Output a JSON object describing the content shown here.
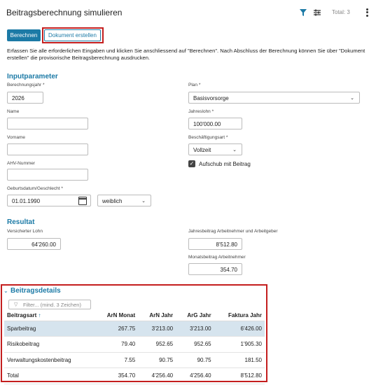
{
  "header": {
    "title": "Beitragsberechnung simulieren",
    "total": "Total: 3",
    "accent": "#1c7aa6",
    "icons": [
      "filter-icon",
      "tune-icon",
      "kebab-icon"
    ]
  },
  "actions": {
    "calculate": "Berechnen",
    "create_document": "Dokument erstellen"
  },
  "intro": "Erfassen Sie alle erforderlichen Eingaben und klicken Sie anschliessend auf \"Berechnen\". Nach Abschluss der Berechnung können Sie über \"Dokument erstellen\" die provisorische Beitragsberechnung ausdrucken.",
  "input": {
    "title": "Inputparameter",
    "year_label": "Berechnungsjahr *",
    "year": "2026",
    "name_label": "Name",
    "name": "",
    "firstname_label": "Vorname",
    "firstname": "",
    "ahv_label": "AHV-Nummer",
    "ahv": "",
    "birth_label": "Geburtsdatum/Geschlecht *",
    "birthdate": "01.01.1990",
    "gender": "weiblich",
    "plan_label": "Plan *",
    "plan": "Basisvorsorge",
    "salary_label": "Jahreslohn *",
    "salary": "100'000.00",
    "employment_label": "Beschäftigungsart *",
    "employment": "Vollzeit",
    "deferral_label": "Aufschub mit Beitrag",
    "deferral_checked": true
  },
  "result": {
    "title": "Resultat",
    "insured_label": "Versicherter Lohn",
    "insured": "64'260.00",
    "annual_label": "Jahresbeitrag Arbeitnehmer und Arbeitgeber",
    "annual": "8'512.80",
    "monthly_label": "Monatsbeitrag Arbeitnehmer",
    "monthly": "354.70"
  },
  "details": {
    "title": "Beitragsdetails",
    "filter_placeholder": "Filter... (mind. 3 Zeichen)",
    "columns": [
      "Beitragsart",
      "ArN Monat",
      "ArN Jahr",
      "ArG Jahr",
      "Faktura Jahr"
    ],
    "rows": [
      [
        "Sparbeitrag",
        "267.75",
        "3'213.00",
        "3'213.00",
        "6'426.00"
      ],
      [
        "Risikobeitrag",
        "79.40",
        "952.65",
        "952.65",
        "1'905.30"
      ],
      [
        "Verwaltungskostenbeitrag",
        "7.55",
        "90.75",
        "90.75",
        "181.50"
      ],
      [
        "Total",
        "354.70",
        "4'256.40",
        "4'256.40",
        "8'512.80"
      ]
    ]
  }
}
